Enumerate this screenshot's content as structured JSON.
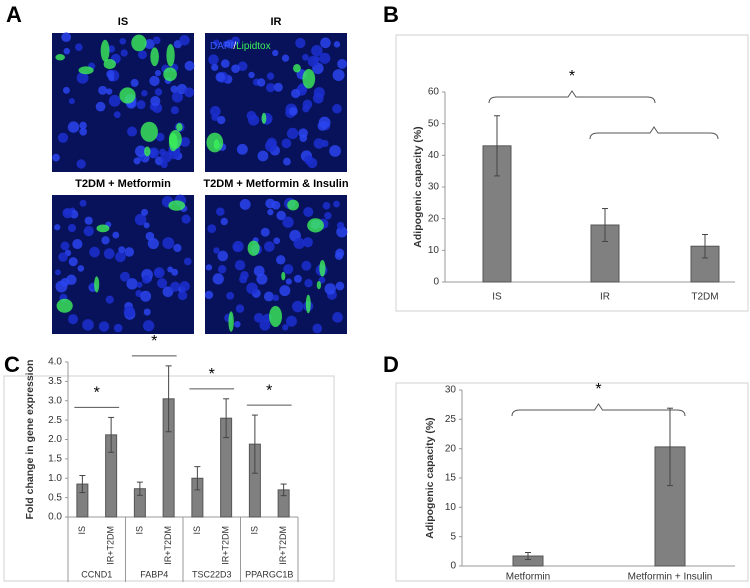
{
  "panels": [
    "A",
    "B",
    "C",
    "D"
  ],
  "image_panel": {
    "labels": [
      "IS",
      "IR",
      "T2DM + Metformin",
      "T2DM + Metformin & Insulin"
    ],
    "stain_legend": {
      "dapi": "DAPI",
      "separator": "/",
      "lipidtox": "Lipidtox"
    }
  },
  "chart_data": [
    {
      "type": "bar",
      "y_label": "Adipogenic capacity (%)",
      "categories": [
        "IS",
        "IR",
        "T2DM"
      ],
      "values": [
        43,
        18,
        11.3
      ],
      "errors": [
        9.5,
        5.2,
        3.7
      ],
      "color": "#808080",
      "ylim": [
        0,
        60
      ],
      "yticks": [
        0,
        10,
        20,
        30,
        40,
        50,
        60
      ],
      "annotations": [
        "*"
      ]
    },
    {
      "type": "grouped_bar",
      "y_label": "Fold change in gene expression",
      "categories": [
        "CCND1",
        "FABP4",
        "TSC22D3",
        "PPARGC1B"
      ],
      "series": [
        {
          "name": "IS",
          "color": "#808080",
          "values": [
            0.85,
            0.73,
            1.0,
            1.88
          ],
          "errors": [
            0.22,
            0.17,
            0.3,
            0.75
          ]
        },
        {
          "name": "IR+T2DM",
          "color": "#808080",
          "values": [
            2.12,
            3.05,
            2.55,
            0.7
          ],
          "errors": [
            0.45,
            0.85,
            0.5,
            0.15
          ]
        }
      ],
      "ylim": [
        0,
        4
      ],
      "yticks": [
        {
          "value": 0,
          "label": "0.0"
        },
        0.5,
        {
          "value": 1,
          "label": "1.0"
        },
        1.5,
        {
          "value": 2,
          "label": "2.0"
        },
        2.5,
        {
          "value": 3,
          "label": "3.0"
        },
        3.5,
        {
          "value": 4,
          "label": "4.0"
        }
      ],
      "annotations": [
        "*",
        "*",
        "*",
        "*"
      ]
    },
    {
      "type": "bar",
      "y_label": "Adipogenic capacity (%)",
      "categories": [
        "Metformin",
        "Metformin + Insulin"
      ],
      "values": [
        1.7,
        20.3
      ],
      "errors": [
        0.6,
        6.6
      ],
      "color": "#808080",
      "ylim": [
        0,
        30
      ],
      "yticks": [
        0,
        5,
        10,
        15,
        20,
        25,
        30
      ],
      "annotations": [
        "*"
      ]
    }
  ]
}
